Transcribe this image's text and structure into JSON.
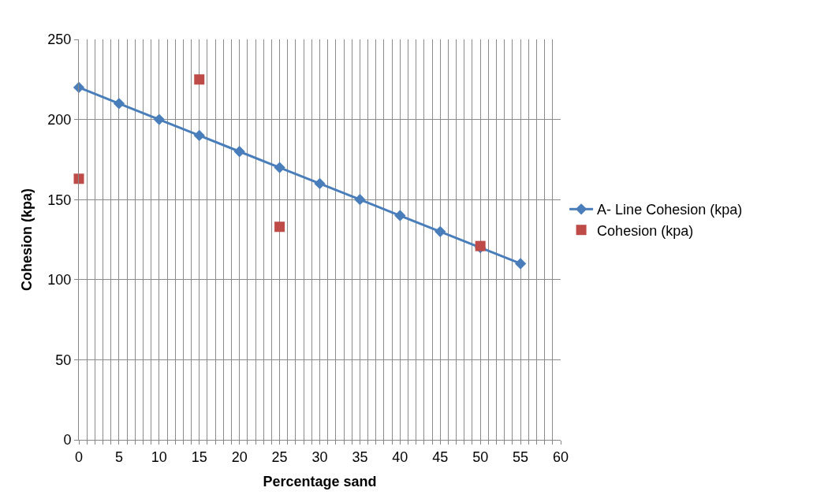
{
  "chart_data": {
    "type": "line",
    "xlabel": "Percentage sand",
    "ylabel": "Cohesion (kpa)",
    "xlim": [
      0,
      60
    ],
    "ylim": [
      0,
      250
    ],
    "xticks": [
      0,
      {
        "value": 1,
        "label": null
      },
      {
        "value": 2,
        "label": null
      },
      {
        "value": 3,
        "label": null
      },
      {
        "value": 4,
        "label": null
      },
      5,
      {
        "value": 6,
        "label": null
      },
      {
        "value": 7,
        "label": null
      },
      {
        "value": 8,
        "label": null
      },
      {
        "value": 9,
        "label": null
      },
      10,
      {
        "value": 11,
        "label": null
      },
      {
        "value": 12,
        "label": null
      },
      {
        "value": 13,
        "label": null
      },
      {
        "value": 14,
        "label": null
      },
      15,
      {
        "value": 16,
        "label": null
      },
      {
        "value": 17,
        "label": null
      },
      {
        "value": 18,
        "label": null
      },
      {
        "value": 19,
        "label": null
      },
      20,
      {
        "value": 21,
        "label": null
      },
      {
        "value": 22,
        "label": null
      },
      {
        "value": 23,
        "label": null
      },
      {
        "value": 24,
        "label": null
      },
      25,
      {
        "value": 26,
        "label": null
      },
      {
        "value": 27,
        "label": null
      },
      {
        "value": 28,
        "label": null
      },
      {
        "value": 29,
        "label": null
      },
      30,
      {
        "value": 31,
        "label": null
      },
      {
        "value": 32,
        "label": null
      },
      {
        "value": 33,
        "label": null
      },
      {
        "value": 34,
        "label": null
      },
      35,
      {
        "value": 36,
        "label": null
      },
      {
        "value": 37,
        "label": null
      },
      {
        "value": 38,
        "label": null
      },
      {
        "value": 39,
        "label": null
      },
      40,
      {
        "value": 41,
        "label": null
      },
      {
        "value": 42,
        "label": null
      },
      {
        "value": 43,
        "label": null
      },
      {
        "value": 44,
        "label": null
      },
      45,
      {
        "value": 46,
        "label": null
      },
      {
        "value": 47,
        "label": null
      },
      {
        "value": 48,
        "label": null
      },
      {
        "value": 49,
        "label": null
      },
      50,
      {
        "value": 51,
        "label": null
      },
      {
        "value": 52,
        "label": null
      },
      {
        "value": 53,
        "label": null
      },
      {
        "value": 54,
        "label": null
      },
      55,
      {
        "value": 56,
        "label": null
      },
      {
        "value": 57,
        "label": null
      },
      {
        "value": 58,
        "label": null
      },
      {
        "value": 59,
        "label": null
      },
      60
    ],
    "yticks": [
      0,
      50,
      100,
      150,
      200,
      250
    ],
    "grid": true,
    "legend": "right",
    "series": [
      {
        "name": "A- Line Cohesion (kpa)",
        "color": "#4a7ebb",
        "marker": "diamond",
        "x": [
          0,
          5,
          10,
          15,
          20,
          25,
          30,
          35,
          40,
          45,
          50,
          55
        ],
        "values": [
          220,
          210,
          200,
          190,
          180,
          170,
          160,
          150,
          140,
          130,
          120,
          110
        ]
      },
      {
        "name": "Cohesion (kpa)",
        "color": "#be4b48",
        "type": "scatter",
        "marker": "square",
        "x": [
          0,
          15,
          25,
          50
        ],
        "values": [
          163,
          225,
          133,
          121
        ]
      }
    ]
  }
}
